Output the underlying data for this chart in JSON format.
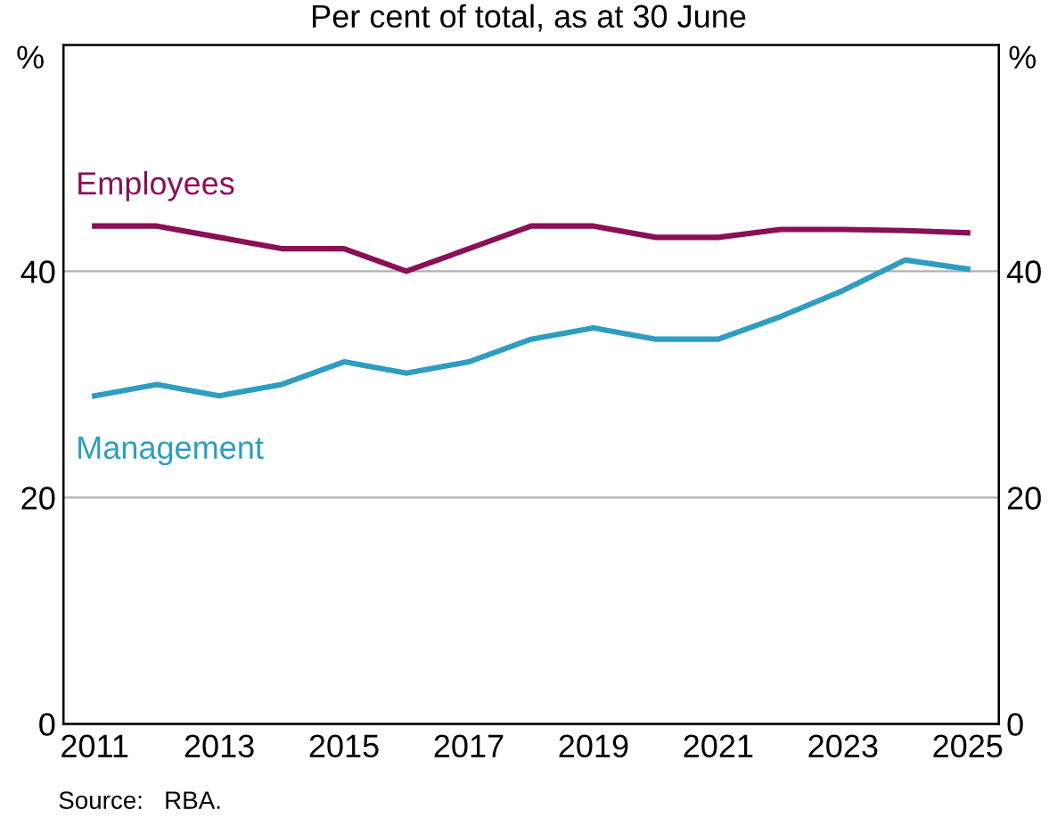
{
  "chart_data": {
    "type": "line",
    "subtitle": "Per cent of total, as at 30 June",
    "categories": [
      "2011",
      null,
      "2013",
      null,
      "2015",
      null,
      "2017",
      null,
      "2019",
      null,
      "2021",
      null,
      "2023",
      null,
      "2025"
    ],
    "series": [
      {
        "name": "Employees",
        "color": "#8a0f56",
        "values": [
          44,
          44,
          43,
          42,
          42,
          40,
          42,
          44,
          44,
          43,
          43,
          43.7,
          43.7,
          43.6,
          43.4
        ]
      },
      {
        "name": "Management",
        "color": "#2e9dbf",
        "values": [
          29,
          30,
          29,
          30,
          32,
          31,
          32,
          34,
          35,
          34,
          34,
          36,
          38.3,
          41,
          40.2
        ]
      }
    ],
    "ylabel": "%",
    "y2label": "%",
    "ylim": [
      0,
      60
    ],
    "yticks": [
      0,
      20,
      40
    ],
    "y2lim": [
      0,
      60
    ],
    "y2ticks": [
      0,
      20,
      40
    ],
    "grid": "y",
    "legend": false,
    "marker": "none",
    "line_style": "solid",
    "annotations": [
      "Source:   RBA."
    ]
  }
}
